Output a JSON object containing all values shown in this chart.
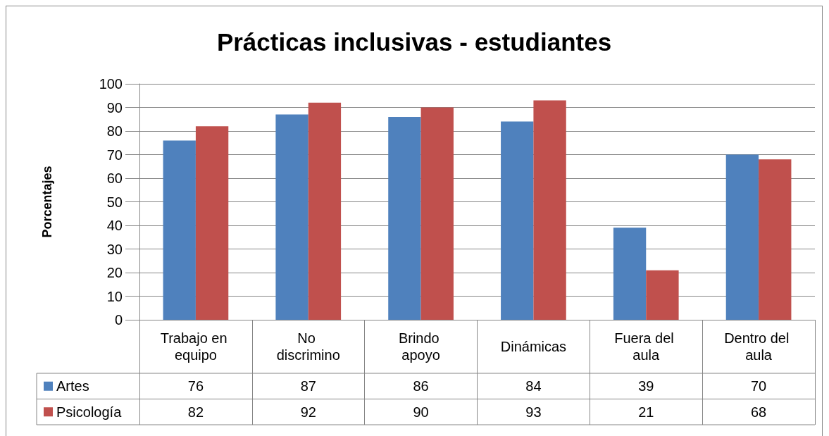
{
  "chart_data": {
    "type": "bar",
    "title": "Prácticas inclusivas - estudiantes",
    "ylabel": "Porcentajes",
    "categories": [
      "Trabajo en equipo",
      "No discrimino",
      "Brindo apoyo",
      "Dinámicas",
      "Fuera del aula",
      "Dentro del aula"
    ],
    "series": [
      {
        "name": "Artes",
        "color": "#4f81bd",
        "values": [
          76,
          87,
          86,
          84,
          39,
          70
        ]
      },
      {
        "name": "Psicología",
        "color": "#c0504d",
        "values": [
          82,
          92,
          90,
          93,
          21,
          68
        ]
      }
    ],
    "ylim": [
      0,
      100
    ],
    "yticks": [
      0,
      10,
      20,
      30,
      40,
      50,
      60,
      70,
      80,
      90,
      100
    ],
    "grid": "y",
    "legend": "bottom left",
    "data_labels": true
  }
}
